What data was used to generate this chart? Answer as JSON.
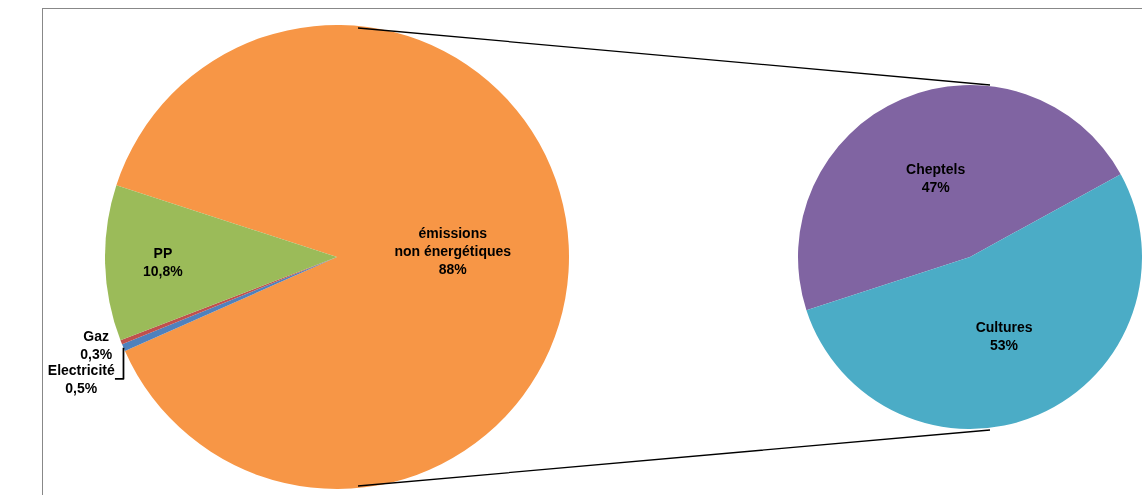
{
  "chart_data": [
    {
      "type": "pie",
      "categories": [
        "émissions\nnon énergétiques",
        "Electricité",
        "Gaz",
        "PP"
      ],
      "values": [
        88,
        0.5,
        0.3,
        10.8
      ],
      "value_labels": [
        "88%",
        "0,5%",
        "0,3%",
        "10,8%"
      ],
      "colors": [
        "#f79646",
        "#4f81bd",
        "#c0504d",
        "#9bbb59"
      ]
    },
    {
      "type": "pie",
      "categories": [
        "Cheptels",
        "Cultures"
      ],
      "values": [
        47,
        53
      ],
      "value_labels": [
        "47%",
        "53%"
      ],
      "colors": [
        "#8064a2",
        "#4bacc6"
      ]
    }
  ]
}
